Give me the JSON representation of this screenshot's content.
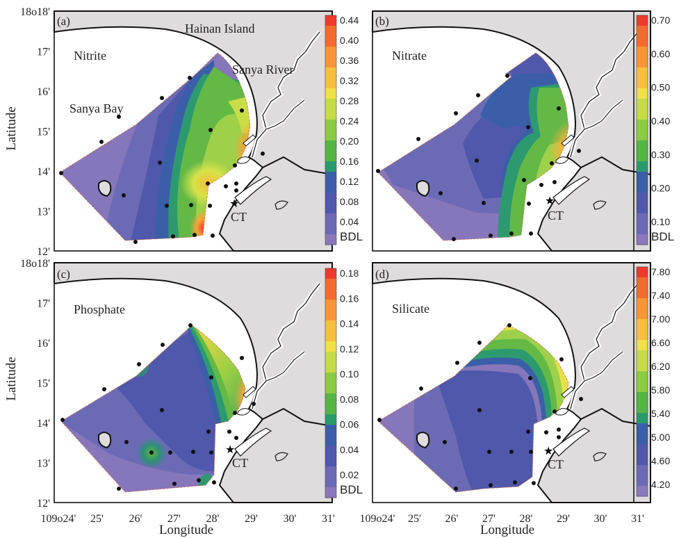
{
  "figure": {
    "y_axis_title": "Latitude",
    "x_axis_title": "Longitude",
    "lat_ticks_top": [
      "18o18'",
      "17'",
      "16'",
      "15'",
      "14'",
      "13'",
      "12'"
    ],
    "lat_ticks_bottom": [
      "18o18'",
      "17'",
      "16'",
      "15'",
      "14'",
      "13'",
      "12'"
    ],
    "lon_ticks": [
      "109o24'",
      "25'",
      "26'",
      "27'",
      "28'",
      "29'",
      "30'",
      "31'"
    ],
    "place_labels": {
      "hainan": "Hainan Island",
      "sanya_river": "Sanya River",
      "sanya_bay": "Sanya Bay",
      "station_ct": "CT"
    }
  },
  "panels": [
    {
      "tag": "(a)",
      "parameter": "Nitrite",
      "colorbar_labels": [
        "0.44",
        "0.40",
        "0.36",
        "0.32",
        "0.28",
        "0.24",
        "0.20",
        "0.16",
        "0.12",
        "0.08",
        "0.04",
        "BDL"
      ]
    },
    {
      "tag": "(b)",
      "parameter": "Nitrate",
      "colorbar_labels": [
        "0.70",
        "0.60",
        "0.50",
        "0.40",
        "0.30",
        "0.20",
        "0.10",
        "BDL"
      ]
    },
    {
      "tag": "(c)",
      "parameter": "Phosphate",
      "colorbar_labels": [
        "0.18",
        "0.16",
        "0.14",
        "0.12",
        "0.10",
        "0.08",
        "0.06",
        "0.04",
        "0.02",
        "BDL"
      ]
    },
    {
      "tag": "(d)",
      "parameter": "Silicate",
      "colorbar_labels": [
        "7.80",
        "7.40",
        "7.00",
        "6.60",
        "6.20",
        "5.80",
        "5.40",
        "5.00",
        "4.60",
        "4.20"
      ]
    }
  ],
  "colors": {
    "land": "#dedcdc",
    "coast": "#111111",
    "scale_low": "#8a78bc",
    "scale_high": "#ee3a2c"
  }
}
